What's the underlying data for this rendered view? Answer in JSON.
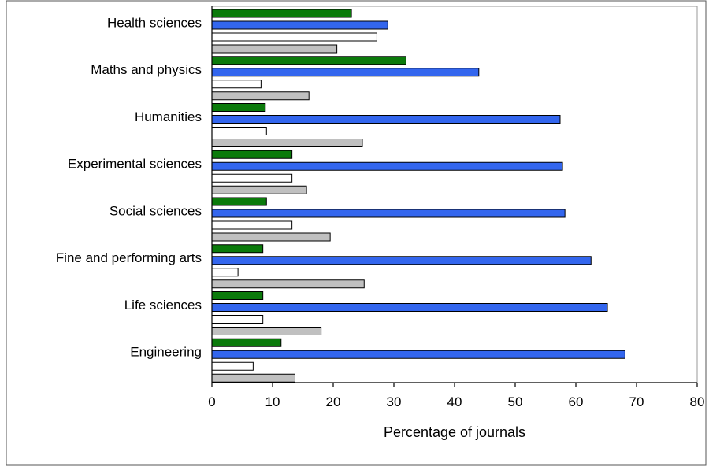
{
  "chart_data": {
    "type": "bar",
    "orientation": "horizontal",
    "categories": [
      "Health sciences",
      "Maths and physics",
      "Humanities",
      "Experimental sciences",
      "Social sciences",
      "Fine and performing arts",
      "Life sciences",
      "Engineering"
    ],
    "series": [
      {
        "color": "#0b7a0b",
        "values": [
          23,
          32,
          8.8,
          13.2,
          9,
          8.4,
          8.4,
          11.4
        ]
      },
      {
        "color": "#3366ee",
        "values": [
          29,
          44,
          57.4,
          57.8,
          58.2,
          62.5,
          65.2,
          68.1
        ]
      },
      {
        "color": "#ffffff",
        "values": [
          27.2,
          8.1,
          9,
          13.2,
          13.2,
          4.3,
          8.4,
          6.8
        ]
      },
      {
        "color": "#c0c0c0",
        "values": [
          20.6,
          16,
          24.8,
          15.6,
          19.5,
          25.1,
          18,
          13.7
        ]
      }
    ],
    "xlabel": "Percentage of journals",
    "ylabel": "",
    "xlim": [
      0,
      80
    ],
    "xticks": [
      0,
      10,
      20,
      30,
      40,
      50,
      60,
      70,
      80
    ],
    "grid": false,
    "legend": "none"
  }
}
